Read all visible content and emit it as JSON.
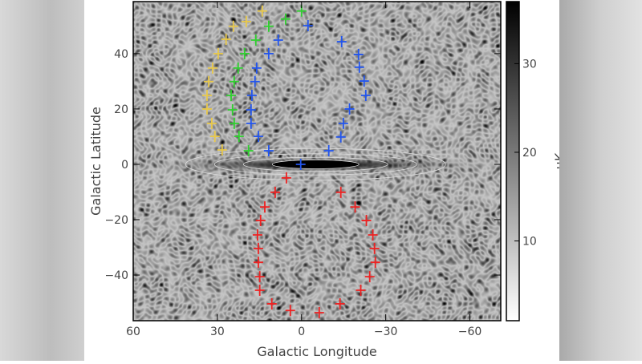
{
  "chart_data": {
    "type": "scatter",
    "xlabel": "Galactic Longitude",
    "ylabel": "Galactic Latitude",
    "xlim": [
      60,
      -71
    ],
    "ylim": [
      -56.5,
      58.8
    ],
    "xticks": [
      60,
      30,
      0,
      -30,
      -60
    ],
    "xtick_labels": [
      "60",
      "30",
      "0",
      "−30",
      "−60"
    ],
    "yticks": [
      40,
      20,
      0,
      -20,
      -40
    ],
    "ytick_labels": [
      "40",
      "20",
      "0",
      "−20",
      "−40"
    ],
    "grid": false,
    "background": "grayscale sky map with white contours along the galactic plane",
    "colorbar": {
      "label": "uK",
      "range": [
        1,
        37
      ],
      "ticks": [
        30,
        20,
        10
      ],
      "tick_labels": [
        "30",
        "20",
        "10"
      ],
      "colormap": "white-to-black"
    },
    "marker": "plus",
    "series": [
      {
        "color": "#e8c84a",
        "points": [
          [
            14,
            55.4
          ],
          [
            19.7,
            51.6
          ],
          [
            24.3,
            49.9
          ],
          [
            26.9,
            45.2
          ],
          [
            29.7,
            40
          ],
          [
            31.7,
            34.8
          ],
          [
            33.1,
            29.9
          ],
          [
            33.7,
            24.9
          ],
          [
            33.7,
            20
          ],
          [
            32,
            14.8
          ],
          [
            30.9,
            10.1
          ],
          [
            28.3,
            5.2
          ]
        ]
      },
      {
        "color": "#2fd02f",
        "points": [
          [
            0,
            55.4
          ],
          [
            5.7,
            52.5
          ],
          [
            11.7,
            49.9
          ],
          [
            16.3,
            44.9
          ],
          [
            20.3,
            40
          ],
          [
            22.6,
            34.8
          ],
          [
            24,
            29.9
          ],
          [
            25.1,
            24.9
          ],
          [
            24.6,
            19.7
          ],
          [
            24,
            14.8
          ],
          [
            22.3,
            10.1
          ],
          [
            18.9,
            4.9
          ]
        ]
      },
      {
        "color": "#2255ee",
        "points": [
          [
            8.3,
            44.9
          ],
          [
            11.7,
            40
          ],
          [
            16,
            34.8
          ],
          [
            16.6,
            29.9
          ],
          [
            17.7,
            24.9
          ],
          [
            18,
            19.7
          ],
          [
            18,
            14.8
          ],
          [
            15.4,
            10.1
          ],
          [
            11.7,
            4.9
          ],
          [
            0.3,
            0
          ],
          [
            -2.3,
            50.1
          ],
          [
            -14.3,
            44.3
          ],
          [
            -20.3,
            39.7
          ],
          [
            -20.6,
            35.1
          ],
          [
            -22.3,
            30.1
          ],
          [
            -22.9,
            24.9
          ],
          [
            -17.1,
            20
          ],
          [
            -14.9,
            14.8
          ],
          [
            -14,
            9.9
          ],
          [
            -9.7,
            4.9
          ]
        ]
      },
      {
        "color": "#ee2222",
        "points": [
          [
            5.4,
            -4.9
          ],
          [
            9.4,
            -10.1
          ],
          [
            13.1,
            -15.4
          ],
          [
            14.6,
            -20.3
          ],
          [
            15.7,
            -25.5
          ],
          [
            15.4,
            -30.4
          ],
          [
            15.4,
            -35.4
          ],
          [
            14.9,
            -40.6
          ],
          [
            14.9,
            -45.5
          ],
          [
            10.6,
            -50.4
          ],
          [
            4,
            -52.8
          ],
          [
            -6.3,
            -53.6
          ],
          [
            -13.7,
            -50.4
          ],
          [
            -21.1,
            -45.5
          ],
          [
            -24.3,
            -40.6
          ],
          [
            -26.3,
            -35.4
          ],
          [
            -26,
            -30.4
          ],
          [
            -25.4,
            -25.5
          ],
          [
            -23.1,
            -20.3
          ],
          [
            -19.1,
            -15.4
          ],
          [
            -14,
            -10.1
          ]
        ]
      }
    ]
  }
}
